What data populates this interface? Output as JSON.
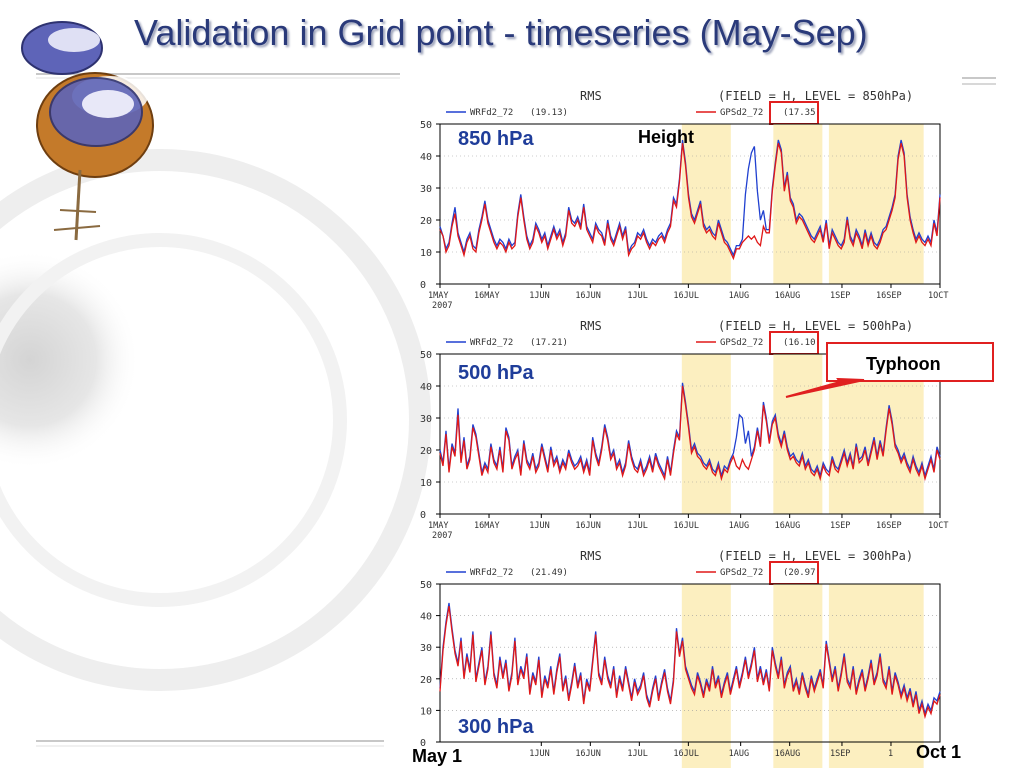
{
  "slide": {
    "title": "Validation in Grid point  -  timeseries (May-Sep)"
  },
  "annotations": {
    "height": "Height",
    "typhoon": "Typhoon",
    "start_date": "May 1",
    "end_date": "Oct 1"
  },
  "colors": {
    "wrf": "#2040d0",
    "gps": "#e01818",
    "highlight": "#fcefc0",
    "callout": "#e02020",
    "level_label": "#1f3d9a",
    "title": "#2a3a7a"
  },
  "icons": [
    "satellite-icon"
  ],
  "typhoon_periods": [
    [
      "2007-07-14",
      "2007-07-29"
    ],
    [
      "2007-08-11",
      "2007-08-26"
    ],
    [
      "2007-08-28",
      "2007-09-12"
    ],
    [
      "2007-09-11",
      "2007-09-26"
    ]
  ],
  "chart_data": [
    {
      "type": "line",
      "title": "RMS",
      "field_text": "(FIELD = H, LEVEL = 850hPa)",
      "level_label": "850 hPa",
      "ylim": [
        0,
        50
      ],
      "yticks": [
        "0",
        "10",
        "20",
        "30",
        "40",
        "50"
      ],
      "xticks": [
        "1MAY",
        "16MAY",
        "1JUN",
        "16JUN",
        "1JUL",
        "16JUL",
        "1AUG",
        "16AUG",
        "1SEP",
        "16SEP",
        "1OCT"
      ],
      "xtick_sub": "2007",
      "grid": true,
      "legend": "top",
      "series": [
        {
          "name": "WRFd2_72",
          "mean": "(19.13)",
          "values": [
            18,
            15,
            11,
            13,
            19,
            24,
            16,
            13,
            10,
            14,
            16,
            12,
            11,
            17,
            21,
            26,
            20,
            17,
            14,
            12,
            14,
            13,
            11,
            14,
            12,
            13,
            22,
            28,
            21,
            15,
            12,
            14,
            19,
            17,
            14,
            16,
            12,
            15,
            18,
            15,
            17,
            13,
            16,
            24,
            20,
            19,
            21,
            18,
            25,
            18,
            16,
            14,
            19,
            17,
            16,
            13,
            20,
            15,
            13,
            16,
            19,
            15,
            18,
            10,
            12,
            13,
            16,
            15,
            17,
            14,
            12,
            14,
            13,
            15,
            16,
            14,
            17,
            19,
            27,
            25,
            33,
            45,
            38,
            28,
            22,
            20,
            23,
            26,
            19,
            17,
            18,
            16,
            15,
            20,
            17,
            14,
            13,
            11,
            9,
            12,
            12,
            14,
            28,
            36,
            41,
            43,
            29,
            20,
            23,
            17,
            17,
            30,
            38,
            45,
            42,
            30,
            35,
            27,
            25,
            20,
            22,
            21,
            19,
            17,
            15,
            14,
            16,
            18,
            14,
            20,
            12,
            17,
            15,
            13,
            12,
            14,
            21,
            15,
            13,
            17,
            15,
            12,
            17,
            13,
            16,
            13,
            12,
            14,
            17,
            18,
            21,
            24,
            28,
            40,
            45,
            41,
            28,
            21,
            17,
            14,
            16,
            14,
            13,
            15,
            13,
            20,
            16,
            28
          ]
        },
        {
          "name": "GPSd2_72",
          "mean": "(17.35)",
          "values": [
            17,
            15,
            10,
            12,
            18,
            22,
            15,
            12,
            9,
            13,
            15,
            11,
            10,
            16,
            20,
            25,
            19,
            16,
            13,
            11,
            13,
            12,
            10,
            13,
            11,
            12,
            21,
            27,
            20,
            14,
            11,
            13,
            18,
            16,
            13,
            15,
            11,
            14,
            17,
            14,
            16,
            12,
            15,
            23,
            19,
            18,
            20,
            17,
            24,
            17,
            15,
            13,
            18,
            16,
            15,
            12,
            19,
            14,
            12,
            15,
            18,
            14,
            17,
            9,
            11,
            12,
            15,
            14,
            16,
            13,
            11,
            13,
            12,
            14,
            15,
            13,
            16,
            18,
            26,
            24,
            32,
            44,
            37,
            27,
            21,
            19,
            22,
            25,
            18,
            16,
            17,
            15,
            14,
            19,
            16,
            13,
            12,
            10,
            8,
            11,
            11,
            13,
            14,
            15,
            14,
            15,
            13,
            12,
            18,
            16,
            16,
            29,
            37,
            44,
            41,
            29,
            34,
            26,
            24,
            19,
            21,
            20,
            18,
            16,
            14,
            13,
            15,
            17,
            13,
            19,
            11,
            16,
            14,
            12,
            11,
            13,
            20,
            14,
            12,
            16,
            14,
            11,
            16,
            12,
            15,
            12,
            11,
            13,
            16,
            17,
            20,
            23,
            27,
            39,
            44,
            40,
            27,
            20,
            16,
            13,
            15,
            13,
            12,
            14,
            12,
            19,
            15,
            27
          ]
        }
      ]
    },
    {
      "type": "line",
      "title": "RMS",
      "field_text": "(FIELD = H, LEVEL = 500hPa)",
      "level_label": "500 hPa",
      "ylim": [
        0,
        50
      ],
      "yticks": [
        "0",
        "10",
        "20",
        "30",
        "40",
        "50"
      ],
      "xticks": [
        "1MAY",
        "16MAY",
        "1JUN",
        "16JUN",
        "1JUL",
        "16JUL",
        "1AUG",
        "16AUG",
        "1SEP",
        "16SEP",
        "1OCT"
      ],
      "xtick_sub": "2007",
      "grid": true,
      "legend": "top",
      "series": [
        {
          "name": "WRFd2_72",
          "mean": "(17.21)",
          "values": [
            20,
            16,
            26,
            14,
            22,
            19,
            33,
            17,
            24,
            15,
            18,
            28,
            25,
            19,
            13,
            16,
            14,
            22,
            17,
            15,
            21,
            14,
            27,
            24,
            15,
            18,
            20,
            13,
            23,
            17,
            15,
            19,
            14,
            16,
            22,
            18,
            14,
            21,
            16,
            18,
            14,
            17,
            15,
            20,
            17,
            15,
            16,
            18,
            14,
            17,
            13,
            24,
            19,
            16,
            21,
            28,
            24,
            18,
            20,
            15,
            17,
            13,
            16,
            23,
            18,
            15,
            14,
            17,
            13,
            15,
            18,
            14,
            19,
            16,
            14,
            12,
            18,
            13,
            20,
            26,
            24,
            41,
            35,
            28,
            20,
            22,
            19,
            18,
            16,
            15,
            17,
            14,
            13,
            16,
            12,
            15,
            14,
            17,
            19,
            24,
            31,
            30,
            22,
            26,
            18,
            21,
            27,
            22,
            35,
            30,
            23,
            29,
            31,
            25,
            22,
            26,
            21,
            18,
            19,
            17,
            16,
            19,
            15,
            17,
            14,
            13,
            15,
            12,
            16,
            14,
            13,
            18,
            15,
            14,
            17,
            20,
            16,
            19,
            15,
            22,
            17,
            18,
            21,
            16,
            20,
            24,
            18,
            23,
            19,
            27,
            34,
            29,
            22,
            20,
            17,
            19,
            16,
            14,
            18,
            15,
            13,
            16,
            12,
            15,
            18,
            14,
            21,
            18
          ]
        },
        {
          "name": "GPSd2_72",
          "mean": "(16.10)",
          "values": [
            19,
            15,
            25,
            13,
            21,
            18,
            31,
            16,
            23,
            14,
            17,
            27,
            24,
            18,
            12,
            15,
            13,
            21,
            16,
            14,
            20,
            13,
            26,
            23,
            14,
            17,
            19,
            12,
            22,
            16,
            14,
            18,
            13,
            15,
            21,
            17,
            13,
            20,
            15,
            17,
            13,
            16,
            14,
            19,
            16,
            14,
            15,
            17,
            13,
            16,
            12,
            23,
            18,
            15,
            20,
            27,
            23,
            17,
            19,
            14,
            16,
            12,
            15,
            22,
            17,
            14,
            13,
            16,
            12,
            14,
            17,
            13,
            18,
            15,
            13,
            11,
            17,
            12,
            19,
            25,
            23,
            40,
            34,
            27,
            19,
            21,
            18,
            17,
            15,
            14,
            16,
            13,
            12,
            15,
            11,
            14,
            13,
            16,
            18,
            15,
            14,
            17,
            15,
            14,
            17,
            20,
            26,
            21,
            34,
            29,
            22,
            28,
            30,
            24,
            21,
            25,
            20,
            17,
            18,
            16,
            15,
            18,
            14,
            16,
            13,
            12,
            14,
            11,
            15,
            13,
            12,
            17,
            14,
            13,
            16,
            19,
            15,
            18,
            14,
            21,
            16,
            17,
            20,
            15,
            19,
            23,
            17,
            22,
            18,
            26,
            33,
            28,
            21,
            19,
            16,
            18,
            15,
            13,
            17,
            14,
            12,
            15,
            11,
            14,
            17,
            13,
            20,
            17
          ]
        }
      ]
    },
    {
      "type": "line",
      "title": "RMS",
      "field_text": "(FIELD = H, LEVEL = 300hPa)",
      "level_label": "300 hPa",
      "ylim": [
        0,
        50
      ],
      "yticks": [
        "0",
        "10",
        "20",
        "30",
        "40",
        "50"
      ],
      "xticks": [
        "1JUN",
        "16JUN",
        "1JUL",
        "16JUL",
        "1AUG",
        "16AUG",
        "1SEP",
        "1"
      ],
      "xtick_sub": "",
      "grid": true,
      "legend": "top",
      "series": [
        {
          "name": "WRFd2_72",
          "mean": "(21.49)",
          "values": [
            17,
            30,
            38,
            44,
            36,
            29,
            25,
            33,
            21,
            28,
            23,
            35,
            20,
            25,
            30,
            19,
            24,
            35,
            22,
            18,
            27,
            21,
            26,
            17,
            22,
            33,
            19,
            24,
            21,
            28,
            16,
            22,
            19,
            27,
            15,
            21,
            18,
            24,
            16,
            23,
            28,
            17,
            21,
            14,
            19,
            25,
            18,
            22,
            13,
            20,
            17,
            26,
            35,
            22,
            19,
            27,
            21,
            18,
            24,
            15,
            21,
            17,
            24,
            19,
            14,
            20,
            16,
            18,
            22,
            15,
            12,
            17,
            21,
            14,
            19,
            23,
            17,
            13,
            20,
            36,
            28,
            33,
            24,
            21,
            18,
            16,
            22,
            19,
            15,
            20,
            17,
            24,
            18,
            21,
            15,
            19,
            22,
            16,
            20,
            24,
            18,
            22,
            27,
            21,
            25,
            30,
            20,
            24,
            19,
            23,
            17,
            30,
            25,
            21,
            27,
            18,
            22,
            24,
            17,
            20,
            16,
            22,
            18,
            15,
            21,
            17,
            20,
            23,
            18,
            32,
            26,
            20,
            24,
            17,
            22,
            28,
            20,
            18,
            24,
            16,
            20,
            23,
            17,
            21,
            26,
            19,
            22,
            28,
            20,
            18,
            24,
            16,
            22,
            19,
            15,
            18,
            14,
            17,
            12,
            16,
            10,
            13,
            9,
            12,
            10,
            14,
            13,
            16
          ]
        },
        {
          "name": "GPSd2_72",
          "mean": "(20.97)",
          "values": [
            16,
            29,
            37,
            43,
            35,
            28,
            24,
            32,
            20,
            27,
            22,
            34,
            19,
            24,
            29,
            18,
            23,
            34,
            21,
            17,
            26,
            20,
            25,
            16,
            21,
            32,
            18,
            23,
            20,
            27,
            15,
            21,
            18,
            26,
            14,
            20,
            17,
            23,
            15,
            22,
            27,
            16,
            20,
            13,
            18,
            24,
            17,
            21,
            12,
            19,
            16,
            25,
            34,
            21,
            18,
            26,
            20,
            17,
            23,
            14,
            20,
            16,
            23,
            18,
            13,
            19,
            15,
            17,
            21,
            14,
            11,
            16,
            20,
            13,
            18,
            22,
            16,
            12,
            19,
            35,
            27,
            32,
            23,
            20,
            17,
            15,
            21,
            18,
            14,
            19,
            16,
            23,
            17,
            20,
            14,
            18,
            21,
            15,
            19,
            23,
            17,
            21,
            26,
            20,
            24,
            29,
            19,
            23,
            18,
            22,
            16,
            29,
            24,
            20,
            26,
            17,
            21,
            23,
            16,
            19,
            15,
            21,
            17,
            14,
            20,
            16,
            19,
            22,
            17,
            31,
            25,
            19,
            23,
            16,
            21,
            27,
            19,
            17,
            23,
            15,
            19,
            22,
            16,
            20,
            25,
            18,
            21,
            27,
            19,
            17,
            23,
            15,
            21,
            18,
            14,
            17,
            13,
            16,
            11,
            15,
            9,
            12,
            8,
            11,
            9,
            13,
            12,
            15
          ]
        }
      ]
    }
  ]
}
